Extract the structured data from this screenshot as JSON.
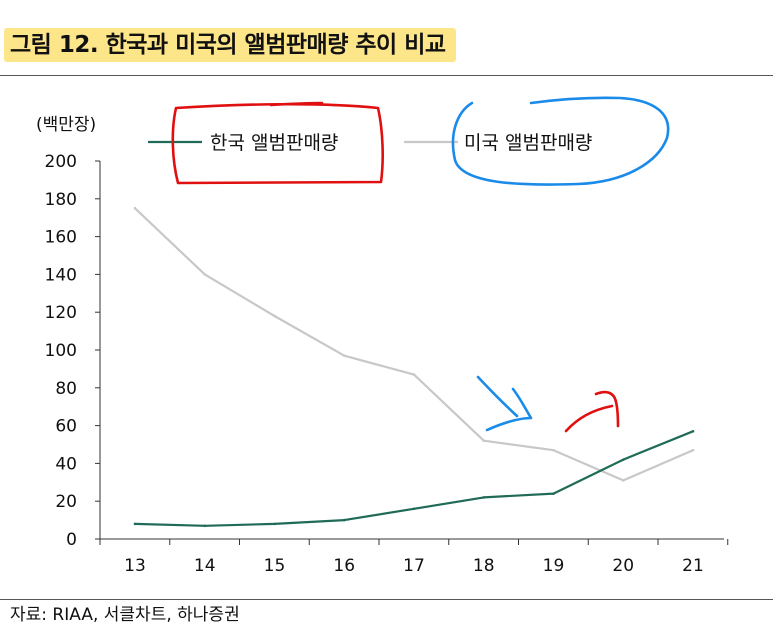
{
  "figure": {
    "title": "그림 12. 한국과 미국의 앨범판매량 추이 비교",
    "source": "자료: RIAA, 서클차트, 하나증권"
  },
  "chart_data": {
    "type": "line",
    "ylabel": "(백만장)",
    "xlabel": "",
    "x": [
      "13",
      "14",
      "15",
      "16",
      "17",
      "18",
      "19",
      "20",
      "21"
    ],
    "ylim": [
      0,
      200
    ],
    "yticks": [
      0,
      20,
      40,
      60,
      80,
      100,
      120,
      140,
      160,
      180,
      200
    ],
    "grid": false,
    "legend_position": "top",
    "series": [
      {
        "name": "한국 앨범판매량",
        "color": "#1f6b58",
        "values": [
          8,
          7,
          8,
          10,
          16,
          22,
          24,
          42,
          57
        ]
      },
      {
        "name": "미국 앨범판매량",
        "color": "#c8c8c8",
        "values": [
          175,
          140,
          118,
          97,
          87,
          52,
          47,
          31,
          47
        ]
      }
    ],
    "annotations": {
      "korea_legend_circle_color": "#e01010",
      "us_legend_circle_color": "#1a8be8",
      "down_arrow_color": "#1a8be8",
      "up_arrow_color": "#e01010"
    }
  }
}
